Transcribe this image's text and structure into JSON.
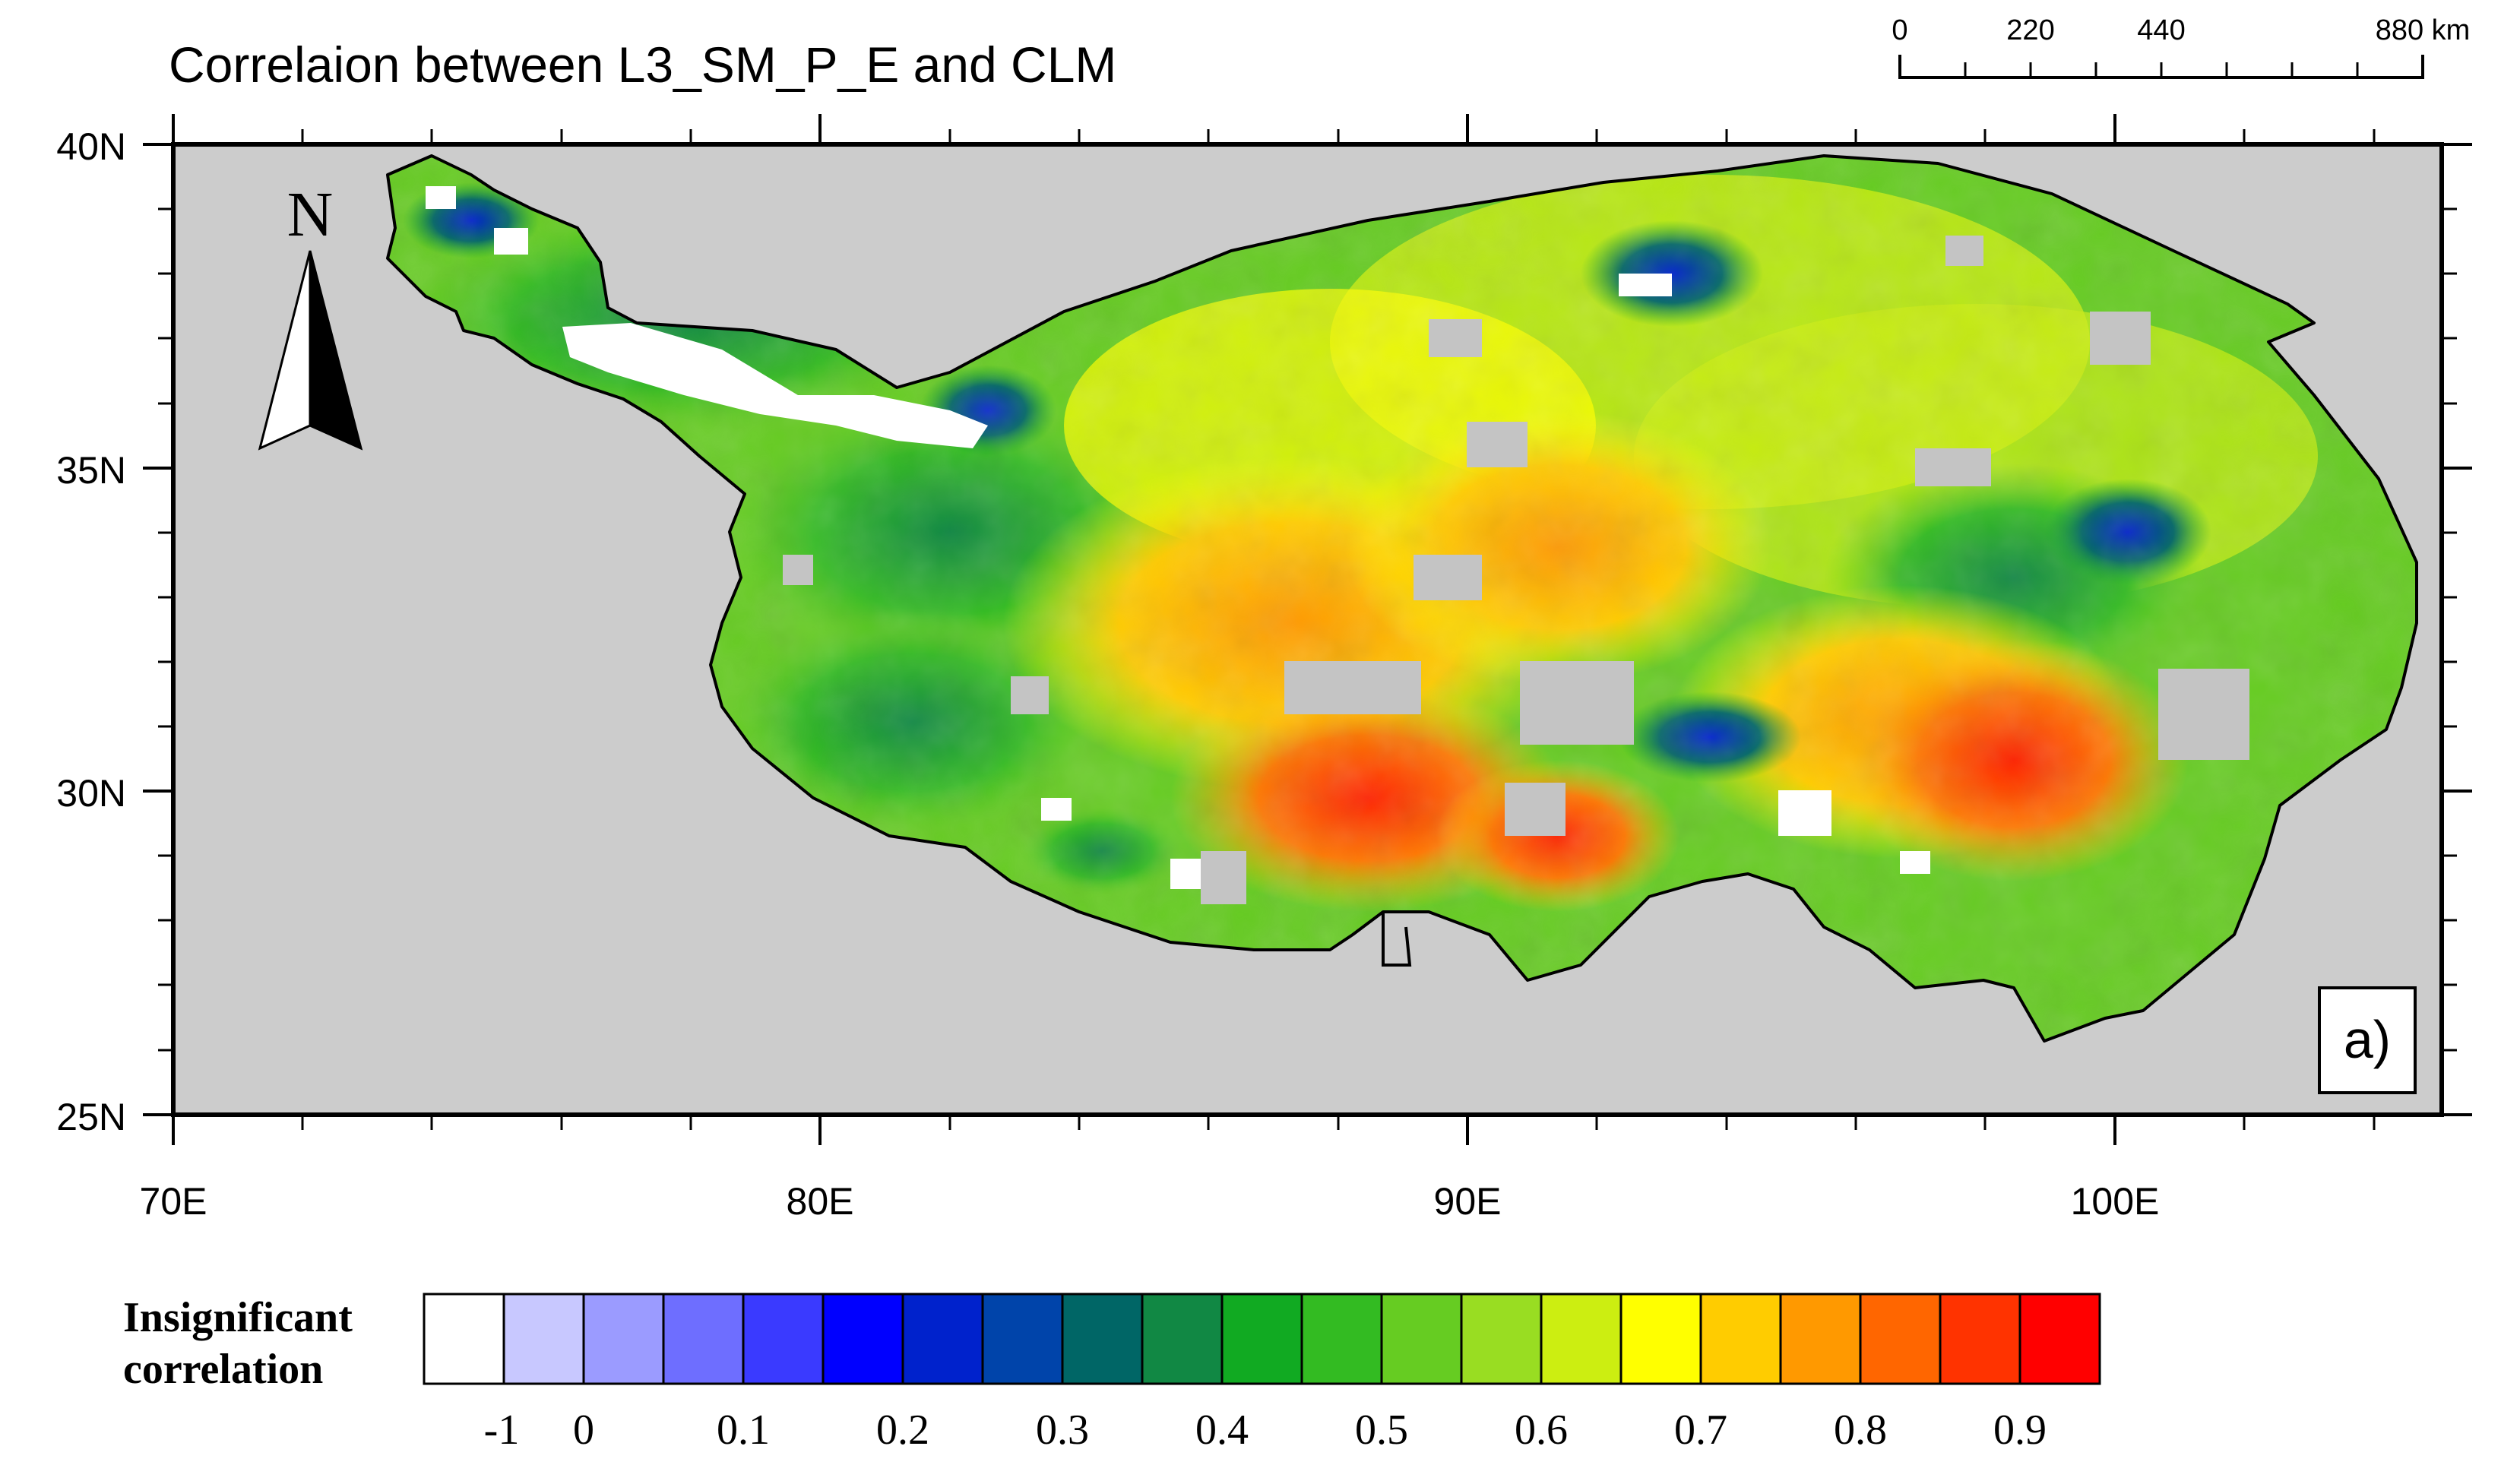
{
  "title": "Correlaion between L3_SM_P_E and CLM",
  "panel_label": "a)",
  "north_arrow": {
    "label": "N",
    "icon": "north-arrow-icon"
  },
  "scale_bar": {
    "ticks": [
      "0",
      "220",
      "440",
      "880 km"
    ]
  },
  "axes": {
    "y_ticks": [
      {
        "label": "40N",
        "lat": 40
      },
      {
        "label": "35N",
        "lat": 35
      },
      {
        "label": "30N",
        "lat": 30
      },
      {
        "label": "25N",
        "lat": 25
      }
    ],
    "x_ticks": [
      {
        "label": "70E",
        "lon": 70
      },
      {
        "label": "80E",
        "lon": 80
      },
      {
        "label": "90E",
        "lon": 90
      },
      {
        "label": "100E",
        "lon": 100
      }
    ],
    "lon_range": [
      70,
      105
    ],
    "lat_range": [
      25,
      40
    ]
  },
  "legend": {
    "insignificant_label": [
      "Insignificant",
      "correlation"
    ],
    "labels": [
      "-1",
      "0",
      "0.1",
      "0.2",
      "0.3",
      "0.4",
      "0.5",
      "0.6",
      "0.7",
      "0.8",
      "0.9"
    ],
    "colors": [
      "#ffffff",
      "#c8c8ff",
      "#9b9bff",
      "#6e6eff",
      "#3a3aff",
      "#0000ff",
      "#0022cc",
      "#0044aa",
      "#006666",
      "#118844",
      "#11aa22",
      "#33bb22",
      "#66cc22",
      "#99dd22",
      "#ccee11",
      "#ffff00",
      "#ffcc00",
      "#ff9900",
      "#ff6600",
      "#ff3300",
      "#ff0000"
    ]
  },
  "colors": {
    "background": "#cccccc",
    "outline": "#000000"
  }
}
